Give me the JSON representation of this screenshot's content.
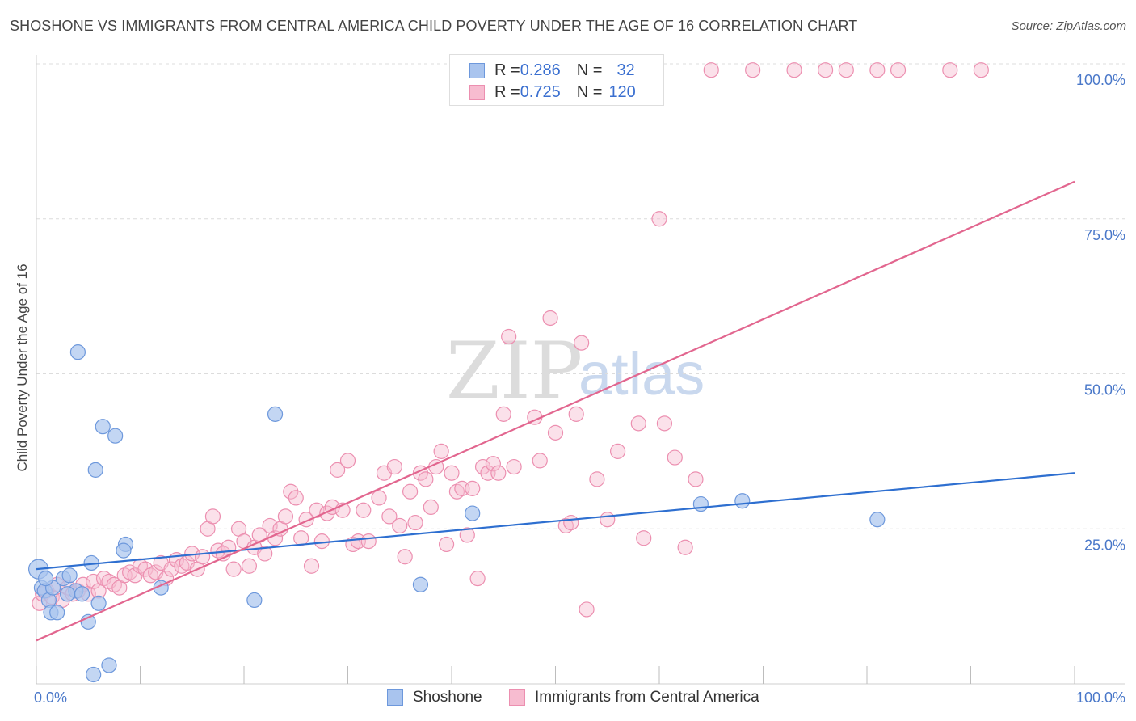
{
  "title": "SHOSHONE VS IMMIGRANTS FROM CENTRAL AMERICA CHILD POVERTY UNDER THE AGE OF 16 CORRELATION CHART",
  "source": "Source: ZipAtlas.com",
  "watermark": {
    "zip": "ZIP",
    "atlas": "atlas"
  },
  "legend_top": {
    "rows": [
      {
        "r_label": "R = ",
        "r_value": "0.286",
        "n_label": "N = ",
        "n_value": "32"
      },
      {
        "r_label": "R = ",
        "r_value": "0.725",
        "n_label": "N = ",
        "n_value": "120"
      }
    ]
  },
  "legend_bottom": [
    "Shoshone",
    "Immigrants from Central America"
  ],
  "colors": {
    "shoshone_fill": "#a9c4ee",
    "shoshone_stroke": "#6d98dc",
    "shoshone_line": "#2e6fd0",
    "immigrants_fill": "#f7bcd0",
    "immigrants_stroke": "#ec8fb0",
    "immigrants_line": "#e2668f",
    "axis_label": "#4a78c9",
    "grid": "#dcdcdc"
  },
  "chart_data": {
    "type": "scatter",
    "title": "SHOSHONE VS IMMIGRANTS FROM CENTRAL AMERICA CHILD POVERTY UNDER THE AGE OF 16 CORRELATION CHART",
    "xlabel": "",
    "ylabel": "Child Poverty Under the Age of 16",
    "xlim": [
      0,
      100
    ],
    "ylim": [
      0,
      100
    ],
    "x_tick_labels": [
      {
        "value": 0,
        "label": "0.0%"
      },
      {
        "value": 100,
        "label": "100.0%"
      }
    ],
    "y_tick_labels": [
      {
        "value": 25,
        "label": "25.0%"
      },
      {
        "value": 50,
        "label": "50.0%"
      },
      {
        "value": 75,
        "label": "75.0%"
      },
      {
        "value": 100,
        "label": "100.0%"
      }
    ],
    "grid": true,
    "series": [
      {
        "name": "Shoshone",
        "R": 0.286,
        "N": 32,
        "trend": {
          "x": [
            0,
            100
          ],
          "y": [
            18.5,
            34.0
          ]
        },
        "points": [
          [
            0.2,
            18.5
          ],
          [
            0.5,
            15.5
          ],
          [
            0.8,
            15.0
          ],
          [
            1.2,
            13.5
          ],
          [
            1.6,
            15.5
          ],
          [
            1.4,
            11.5
          ],
          [
            2.0,
            11.5
          ],
          [
            2.6,
            17.0
          ],
          [
            3.2,
            17.5
          ],
          [
            3.8,
            15.0
          ],
          [
            4.4,
            14.5
          ],
          [
            5.3,
            19.5
          ],
          [
            5.0,
            10.0
          ],
          [
            6.0,
            13.0
          ],
          [
            7.0,
            3.0
          ],
          [
            5.5,
            1.5
          ],
          [
            4.0,
            53.5
          ],
          [
            5.7,
            34.5
          ],
          [
            6.4,
            41.5
          ],
          [
            7.6,
            40.0
          ],
          [
            8.6,
            22.5
          ],
          [
            8.4,
            21.5
          ],
          [
            12.0,
            15.5
          ],
          [
            21.0,
            13.5
          ],
          [
            23.0,
            43.5
          ],
          [
            37.0,
            16.0
          ],
          [
            42.0,
            27.5
          ],
          [
            64.0,
            29.0
          ],
          [
            68.0,
            29.5
          ],
          [
            81.0,
            26.5
          ],
          [
            0.9,
            17.0
          ],
          [
            3.0,
            14.5
          ]
        ]
      },
      {
        "name": "Immigrants from Central America",
        "R": 0.725,
        "N": 120,
        "trend": {
          "x": [
            0,
            100
          ],
          "y": [
            7.0,
            81.0
          ]
        },
        "points": [
          [
            0.3,
            13.0
          ],
          [
            0.6,
            14.5
          ],
          [
            1.0,
            15.0
          ],
          [
            1.5,
            14.0
          ],
          [
            2.0,
            16.0
          ],
          [
            2.5,
            13.5
          ],
          [
            3.0,
            15.5
          ],
          [
            3.5,
            14.5
          ],
          [
            4.0,
            15.0
          ],
          [
            4.5,
            16.0
          ],
          [
            5.0,
            14.5
          ],
          [
            5.5,
            16.5
          ],
          [
            6.0,
            15.0
          ],
          [
            6.5,
            17.0
          ],
          [
            7.0,
            16.5
          ],
          [
            7.5,
            16.0
          ],
          [
            8.0,
            15.5
          ],
          [
            8.5,
            17.5
          ],
          [
            9.0,
            18.0
          ],
          [
            9.5,
            17.5
          ],
          [
            10.0,
            19.0
          ],
          [
            10.5,
            18.5
          ],
          [
            11.0,
            17.5
          ],
          [
            11.5,
            18.0
          ],
          [
            12.0,
            19.5
          ],
          [
            12.5,
            17.0
          ],
          [
            13.0,
            18.5
          ],
          [
            13.5,
            20.0
          ],
          [
            14.0,
            19.0
          ],
          [
            14.5,
            19.5
          ],
          [
            15.0,
            21.0
          ],
          [
            15.5,
            18.5
          ],
          [
            16.0,
            20.5
          ],
          [
            16.5,
            25.0
          ],
          [
            17.0,
            27.0
          ],
          [
            17.5,
            21.5
          ],
          [
            18.0,
            21.0
          ],
          [
            18.5,
            22.0
          ],
          [
            19.0,
            18.5
          ],
          [
            19.5,
            25.0
          ],
          [
            20.0,
            23.0
          ],
          [
            20.5,
            19.0
          ],
          [
            21.0,
            22.0
          ],
          [
            21.5,
            24.0
          ],
          [
            22.0,
            21.0
          ],
          [
            22.5,
            25.5
          ],
          [
            23.0,
            23.5
          ],
          [
            23.5,
            25.0
          ],
          [
            24.0,
            27.0
          ],
          [
            24.5,
            31.0
          ],
          [
            25.0,
            30.0
          ],
          [
            25.5,
            23.5
          ],
          [
            26.0,
            26.5
          ],
          [
            26.5,
            19.0
          ],
          [
            27.0,
            28.0
          ],
          [
            27.5,
            23.0
          ],
          [
            28.0,
            27.5
          ],
          [
            28.5,
            28.5
          ],
          [
            29.0,
            34.5
          ],
          [
            29.5,
            28.0
          ],
          [
            30.0,
            36.0
          ],
          [
            30.5,
            22.5
          ],
          [
            31.0,
            23.0
          ],
          [
            31.5,
            28.0
          ],
          [
            32.0,
            23.0
          ],
          [
            33.0,
            30.0
          ],
          [
            33.5,
            34.0
          ],
          [
            34.0,
            27.0
          ],
          [
            34.5,
            35.0
          ],
          [
            35.0,
            25.5
          ],
          [
            35.5,
            20.5
          ],
          [
            36.0,
            31.0
          ],
          [
            36.5,
            26.0
          ],
          [
            37.0,
            34.0
          ],
          [
            37.5,
            33.0
          ],
          [
            38.0,
            28.5
          ],
          [
            38.5,
            35.0
          ],
          [
            39.0,
            37.5
          ],
          [
            39.5,
            22.5
          ],
          [
            40.0,
            34.0
          ],
          [
            40.5,
            31.0
          ],
          [
            41.0,
            31.5
          ],
          [
            41.5,
            24.0
          ],
          [
            42.0,
            31.5
          ],
          [
            42.5,
            17.0
          ],
          [
            43.0,
            35.0
          ],
          [
            43.5,
            34.0
          ],
          [
            44.0,
            35.5
          ],
          [
            44.5,
            34.0
          ],
          [
            45.0,
            43.5
          ],
          [
            45.5,
            56.0
          ],
          [
            46.0,
            35.0
          ],
          [
            48.0,
            43.0
          ],
          [
            48.5,
            36.0
          ],
          [
            49.5,
            59.0
          ],
          [
            50.0,
            40.5
          ],
          [
            51.0,
            25.5
          ],
          [
            51.5,
            26.0
          ],
          [
            52.0,
            43.5
          ],
          [
            52.5,
            55.0
          ],
          [
            53.0,
            12.0
          ],
          [
            54.0,
            33.0
          ],
          [
            55.0,
            26.5
          ],
          [
            56.0,
            37.5
          ],
          [
            58.0,
            42.0
          ],
          [
            58.5,
            23.5
          ],
          [
            60.0,
            75.0
          ],
          [
            60.5,
            42.0
          ],
          [
            61.5,
            36.5
          ],
          [
            62.5,
            22.0
          ],
          [
            63.5,
            33.0
          ],
          [
            65.0,
            99.0
          ],
          [
            69.0,
            99.0
          ],
          [
            73.0,
            99.0
          ],
          [
            76.0,
            99.0
          ],
          [
            78.0,
            99.0
          ],
          [
            81.0,
            99.0
          ],
          [
            83.0,
            99.0
          ],
          [
            88.0,
            99.0
          ],
          [
            91.0,
            99.0
          ]
        ]
      }
    ]
  }
}
